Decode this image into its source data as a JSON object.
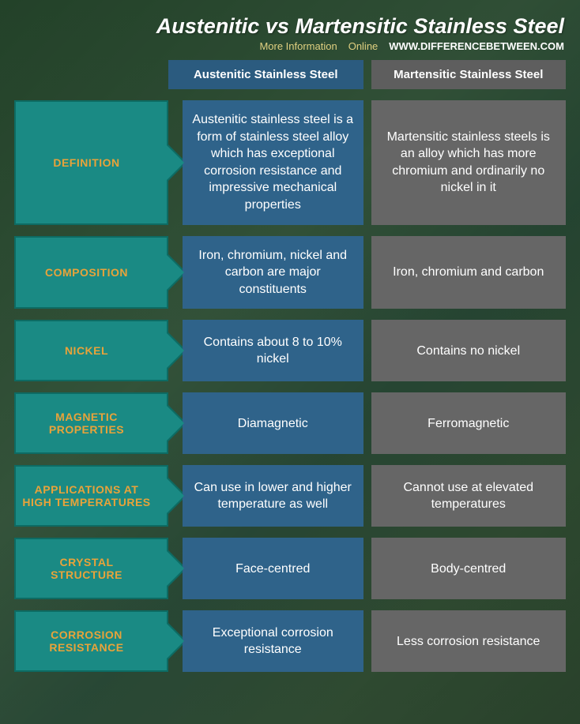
{
  "title": "Austenitic vs Martensitic Stainless Steel",
  "subtitle": {
    "more": "More Information",
    "online": "Online",
    "site": "WWW.DIFFERENCEBETWEEN.COM"
  },
  "colors": {
    "label_bg": "#1a8a84",
    "label_border": "#0d6b63",
    "label_text": "#e8a33a",
    "col_a_header": "#2b5b7f",
    "col_a_cell": "#2f638a",
    "col_b_header": "#5e5e5e",
    "col_b_cell": "#666666"
  },
  "columns": {
    "a": "Austenitic Stainless Steel",
    "b": "Martensitic Stainless Steel"
  },
  "rows": [
    {
      "label": "DEFINITION",
      "a": "Austenitic stainless steel is a form of stainless steel alloy which has exceptional corrosion resistance and impressive mechanical properties",
      "b": "Martensitic stainless steels is an alloy which has more chromium and ordinarily no nickel in it"
    },
    {
      "label": "COMPOSITION",
      "a": "Iron, chromium, nickel and carbon are major constituents",
      "b": "Iron, chromium and carbon"
    },
    {
      "label": "NICKEL",
      "a": "Contains about 8 to 10% nickel",
      "b": "Contains no nickel"
    },
    {
      "label": "MAGNETIC PROPERTIES",
      "a": "Diamagnetic",
      "b": "Ferromagnetic"
    },
    {
      "label": "APPLICATIONS AT HIGH TEMPERATURES",
      "a": "Can use in lower and higher temperature as well",
      "b": "Cannot use at elevated temperatures"
    },
    {
      "label": "CRYSTAL STRUCTURE",
      "a": "Face-centred",
      "b": "Body-centred"
    },
    {
      "label": "CORROSION RESISTANCE",
      "a": "Exceptional corrosion resistance",
      "b": "Less corrosion resistance"
    }
  ]
}
